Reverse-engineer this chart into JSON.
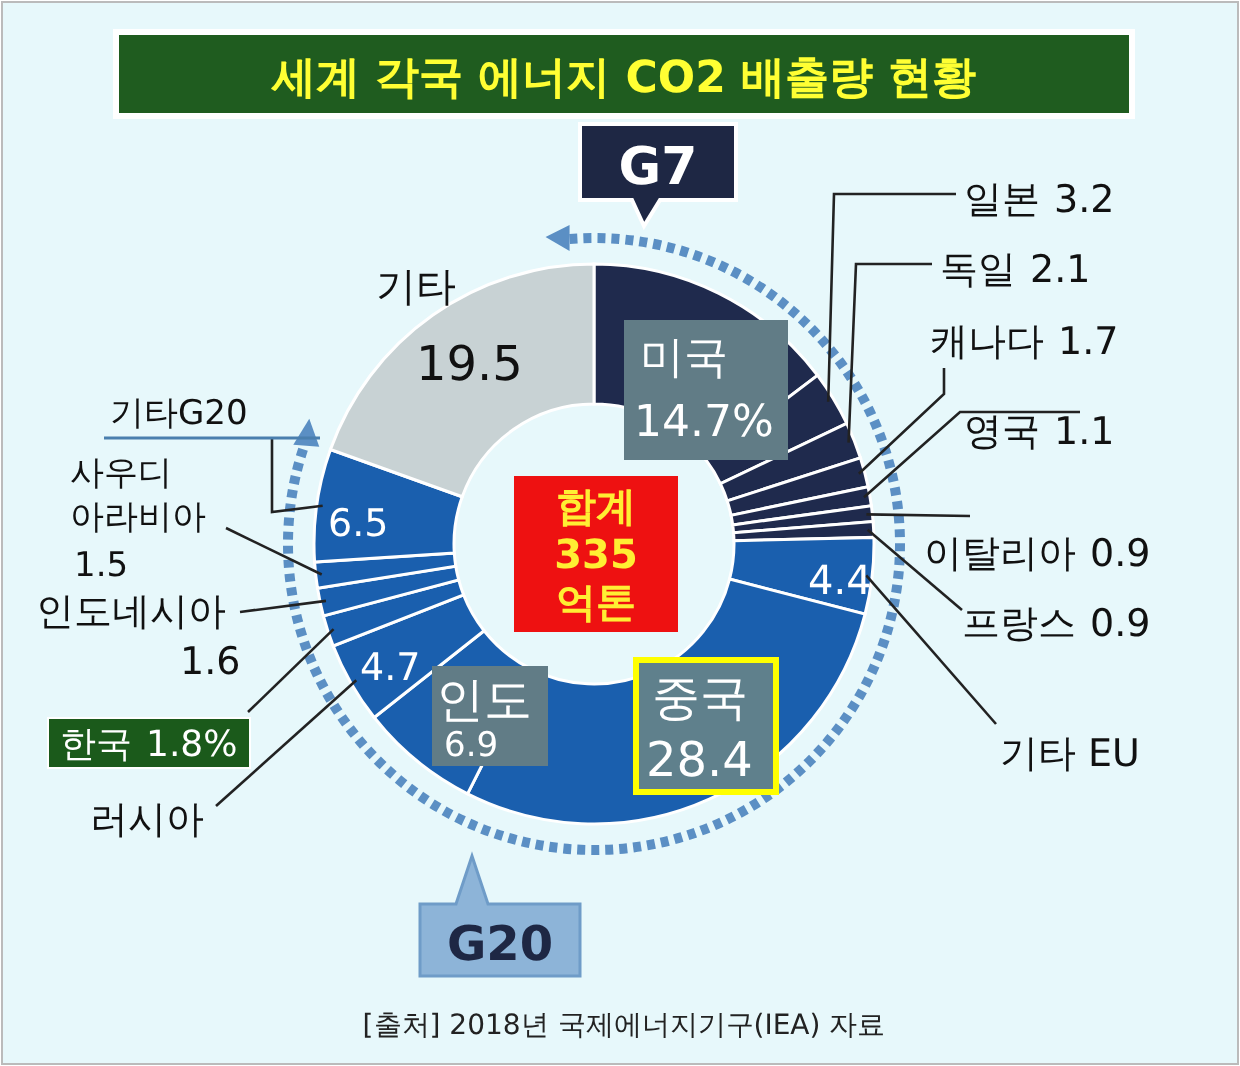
{
  "chart_data": {
    "type": "donut",
    "title": "세계 각국 에너지 CO2 배출량 현황",
    "categories": [
      "미국",
      "일본",
      "독일",
      "캐나다",
      "영국",
      "이탈리아",
      "프랑스",
      "기타 EU",
      "중국",
      "인도",
      "러시아",
      "한국",
      "인도네시아",
      "사우디 아라비아",
      "기타G20",
      "기타"
    ],
    "values": [
      14.7,
      3.2,
      2.1,
      1.7,
      1.1,
      0.9,
      0.9,
      4.4,
      28.4,
      6.9,
      4.7,
      1.8,
      1.6,
      1.5,
      6.5,
      19.5
    ],
    "value_labels": [
      "14.7%",
      "3.2",
      "2.1",
      "1.7",
      "1.1",
      "0.9",
      "0.9",
      "4.4",
      "28.4",
      "6.9",
      "4.7",
      "1.8%",
      "1.6",
      "1.5",
      "6.5",
      "19.5"
    ],
    "colors": [
      "#1f2a4d",
      "#1f2a4d",
      "#1f2a4d",
      "#1f2a4d",
      "#1f2a4d",
      "#1f2a4d",
      "#1f2a4d",
      "#1a5fae",
      "#1a5fae",
      "#1a5fae",
      "#1a5fae",
      "#1a5fae",
      "#1a5fae",
      "#1a5fae",
      "#1a5fae",
      "#c8d2d4"
    ],
    "annotations": [
      "합계 335 억톤",
      "G7",
      "G20",
      "[출처] 2018년 국제에너지기구(IEA) 자료"
    ]
  }
}
